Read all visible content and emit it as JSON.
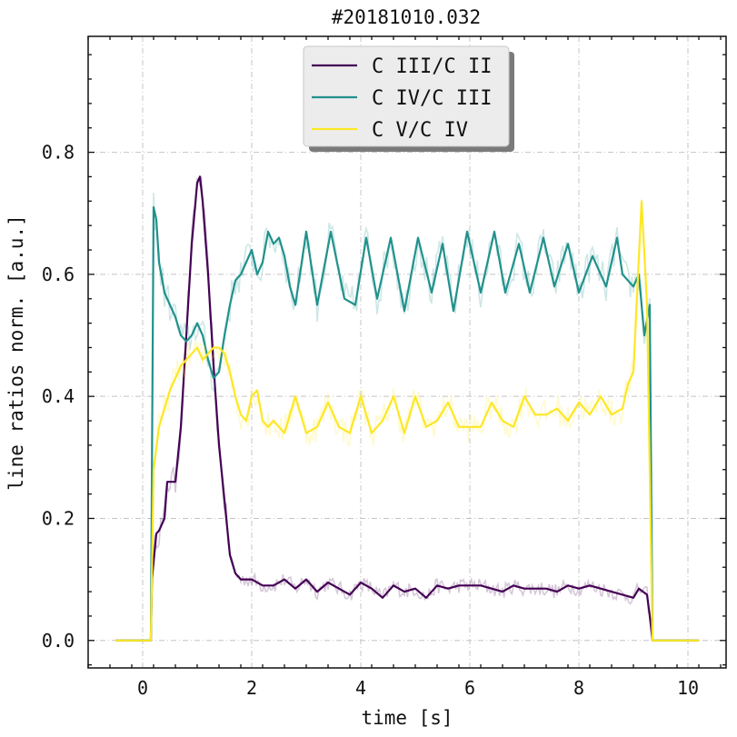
{
  "chart_data": {
    "type": "line",
    "title": "#20181010.032",
    "xlabel": "time [s]",
    "ylabel": "line ratios norm. [a.u.]",
    "xlim": [
      -1.0,
      10.7
    ],
    "ylim": [
      -0.045,
      0.99
    ],
    "xticks": [
      0,
      2,
      4,
      6,
      8,
      10
    ],
    "xtick_labels": [
      "0",
      "2",
      "4",
      "6",
      "8",
      "10"
    ],
    "yticks": [
      0.0,
      0.2,
      0.4,
      0.6,
      0.8
    ],
    "ytick_labels": [
      "0.0",
      "0.2",
      "0.4",
      "0.6",
      "0.8"
    ],
    "grid": true,
    "legend_position": "top-center",
    "series": [
      {
        "name": "C III/C II",
        "color": "#440154",
        "x": [
          -0.5,
          0.15,
          0.17,
          0.25,
          0.3,
          0.4,
          0.45,
          0.5,
          0.6,
          0.7,
          0.8,
          0.9,
          1.0,
          1.05,
          1.1,
          1.2,
          1.3,
          1.4,
          1.5,
          1.6,
          1.7,
          1.8,
          1.9,
          2.0,
          2.2,
          2.4,
          2.6,
          2.8,
          3.0,
          3.2,
          3.4,
          3.6,
          3.8,
          4.0,
          4.2,
          4.4,
          4.6,
          4.8,
          5.0,
          5.2,
          5.4,
          5.6,
          5.8,
          6.0,
          6.2,
          6.4,
          6.6,
          6.8,
          7.0,
          7.2,
          7.4,
          7.6,
          7.8,
          8.0,
          8.2,
          8.4,
          8.6,
          8.8,
          9.0,
          9.1,
          9.25,
          9.3,
          9.35,
          10.2
        ],
        "y": [
          0.0,
          0.0,
          0.1,
          0.175,
          0.18,
          0.2,
          0.26,
          0.26,
          0.26,
          0.35,
          0.5,
          0.65,
          0.75,
          0.76,
          0.72,
          0.6,
          0.45,
          0.32,
          0.23,
          0.14,
          0.11,
          0.1,
          0.1,
          0.1,
          0.09,
          0.09,
          0.1,
          0.085,
          0.1,
          0.08,
          0.095,
          0.085,
          0.075,
          0.095,
          0.085,
          0.07,
          0.09,
          0.08,
          0.085,
          0.07,
          0.09,
          0.085,
          0.09,
          0.09,
          0.09,
          0.085,
          0.08,
          0.09,
          0.085,
          0.085,
          0.085,
          0.08,
          0.09,
          0.085,
          0.09,
          0.085,
          0.08,
          0.075,
          0.07,
          0.085,
          0.075,
          0.04,
          0.0,
          0.0
        ]
      },
      {
        "name": "C IV/C III",
        "color": "#21918c",
        "x": [
          -0.5,
          0.15,
          0.2,
          0.25,
          0.3,
          0.4,
          0.5,
          0.6,
          0.7,
          0.8,
          0.9,
          1.0,
          1.1,
          1.2,
          1.3,
          1.4,
          1.5,
          1.6,
          1.7,
          1.8,
          1.9,
          2.0,
          2.1,
          2.2,
          2.3,
          2.4,
          2.5,
          2.6,
          2.7,
          2.8,
          3.0,
          3.2,
          3.45,
          3.7,
          3.9,
          4.1,
          4.3,
          4.55,
          4.8,
          5.05,
          5.3,
          5.5,
          5.7,
          5.95,
          6.2,
          6.45,
          6.65,
          6.9,
          7.1,
          7.35,
          7.55,
          7.8,
          8.0,
          8.25,
          8.5,
          8.7,
          8.8,
          9.0,
          9.1,
          9.2,
          9.3,
          9.35,
          10.2
        ],
        "y": [
          0.0,
          0.0,
          0.71,
          0.69,
          0.62,
          0.57,
          0.55,
          0.53,
          0.5,
          0.49,
          0.5,
          0.52,
          0.5,
          0.46,
          0.43,
          0.44,
          0.5,
          0.55,
          0.59,
          0.6,
          0.62,
          0.64,
          0.6,
          0.62,
          0.67,
          0.65,
          0.66,
          0.63,
          0.58,
          0.55,
          0.67,
          0.55,
          0.67,
          0.56,
          0.55,
          0.66,
          0.56,
          0.66,
          0.54,
          0.66,
          0.57,
          0.65,
          0.54,
          0.67,
          0.57,
          0.67,
          0.57,
          0.65,
          0.57,
          0.66,
          0.58,
          0.65,
          0.57,
          0.63,
          0.58,
          0.66,
          0.6,
          0.58,
          0.6,
          0.5,
          0.55,
          0.0,
          0.0
        ]
      },
      {
        "name": "C V/C IV",
        "color": "#fde725",
        "x": [
          -0.5,
          0.15,
          0.2,
          0.3,
          0.4,
          0.5,
          0.6,
          0.7,
          0.8,
          0.9,
          1.0,
          1.1,
          1.2,
          1.3,
          1.4,
          1.5,
          1.6,
          1.7,
          1.8,
          1.9,
          2.0,
          2.1,
          2.2,
          2.3,
          2.4,
          2.5,
          2.6,
          2.8,
          3.0,
          3.2,
          3.4,
          3.6,
          3.8,
          4.0,
          4.2,
          4.4,
          4.6,
          4.8,
          5.0,
          5.2,
          5.4,
          5.6,
          5.8,
          6.0,
          6.2,
          6.4,
          6.6,
          6.8,
          7.0,
          7.2,
          7.4,
          7.6,
          7.8,
          8.0,
          8.2,
          8.4,
          8.6,
          8.8,
          8.9,
          9.0,
          9.15,
          9.25,
          9.35,
          10.2
        ],
        "y": [
          0.0,
          0.0,
          0.28,
          0.35,
          0.38,
          0.41,
          0.43,
          0.45,
          0.46,
          0.47,
          0.48,
          0.46,
          0.47,
          0.48,
          0.48,
          0.47,
          0.44,
          0.4,
          0.37,
          0.36,
          0.4,
          0.41,
          0.36,
          0.35,
          0.36,
          0.35,
          0.34,
          0.4,
          0.34,
          0.35,
          0.39,
          0.35,
          0.34,
          0.4,
          0.34,
          0.36,
          0.4,
          0.34,
          0.4,
          0.35,
          0.36,
          0.39,
          0.35,
          0.35,
          0.35,
          0.39,
          0.36,
          0.35,
          0.4,
          0.37,
          0.37,
          0.38,
          0.36,
          0.39,
          0.37,
          0.4,
          0.37,
          0.38,
          0.42,
          0.44,
          0.72,
          0.55,
          0.0,
          0.0
        ]
      }
    ]
  }
}
